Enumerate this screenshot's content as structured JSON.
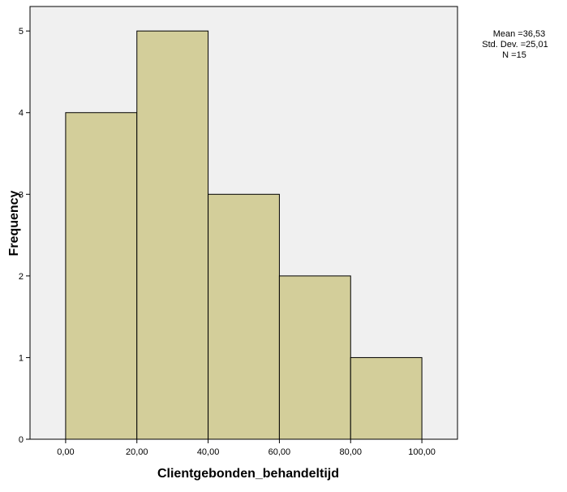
{
  "chart_data": {
    "type": "bar",
    "subtype": "histogram",
    "bins": [
      {
        "from": 0,
        "to": 20,
        "count": 4
      },
      {
        "from": 20,
        "to": 40,
        "count": 5
      },
      {
        "from": 40,
        "to": 60,
        "count": 3
      },
      {
        "from": 60,
        "to": 80,
        "count": 2
      },
      {
        "from": 80,
        "to": 100,
        "count": 1
      }
    ],
    "xlabel": "Clientgebonden_behandeltijd",
    "ylabel": "Frequency",
    "xlim": [
      -10,
      110
    ],
    "ylim": [
      0,
      5.3
    ],
    "x_ticks": [
      0,
      20,
      40,
      60,
      80,
      100
    ],
    "x_tick_labels": [
      "0,00",
      "20,00",
      "40,00",
      "60,00",
      "80,00",
      "100,00"
    ],
    "y_ticks": [
      0,
      1,
      2,
      3,
      4,
      5
    ],
    "y_tick_labels": [
      "0",
      "1",
      "2",
      "3",
      "4",
      "5"
    ],
    "grid": false,
    "stats": [
      "Mean =36,53",
      "Std. Dev. =25,01",
      "N =15"
    ],
    "colors": {
      "bar_fill": "#d3ce9a",
      "bar_stroke": "#000000",
      "plot_bg": "#f0f0f0"
    }
  }
}
